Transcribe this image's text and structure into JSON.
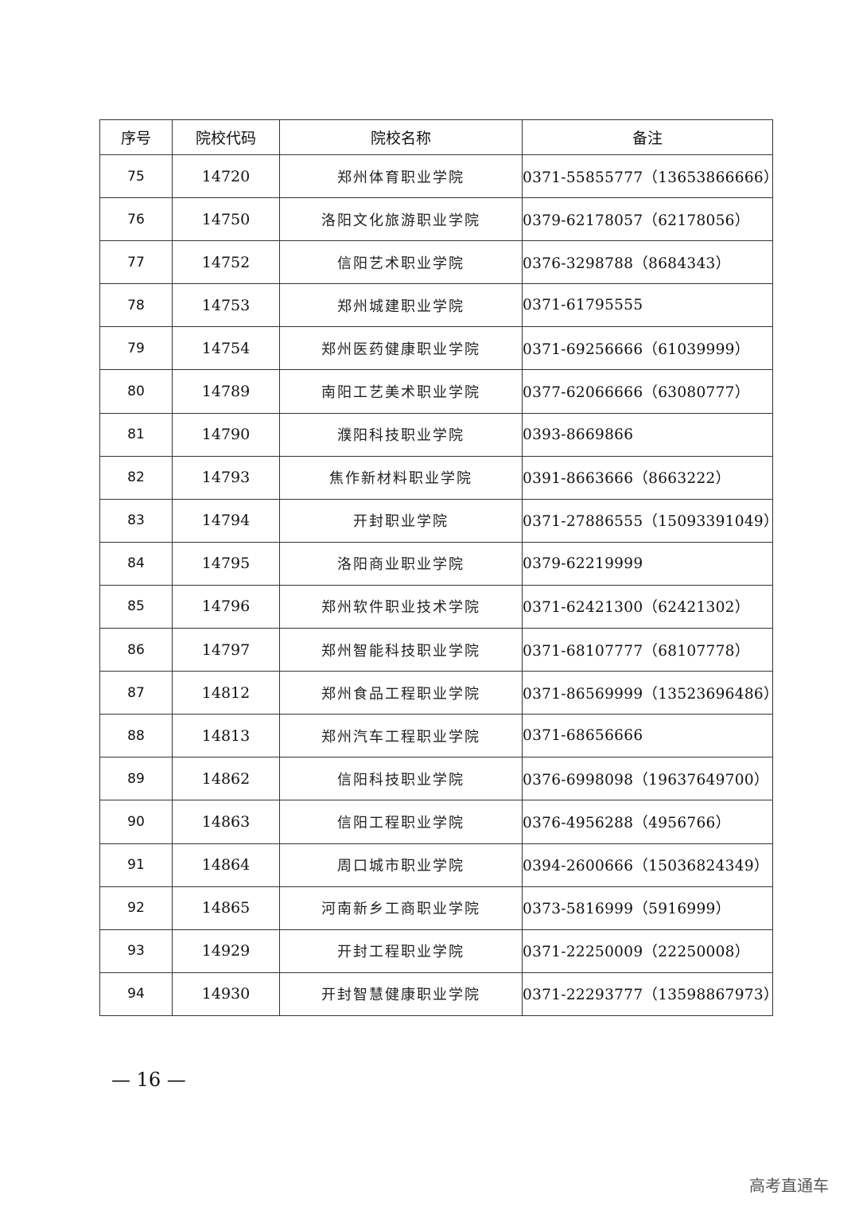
{
  "table": {
    "headers": [
      "序号",
      "院校代码",
      "院校名称",
      "备注"
    ],
    "rows": [
      [
        "75",
        "14720",
        "郑州体育职业学院",
        "0371-55855777（13653866666）"
      ],
      [
        "76",
        "14750",
        "洛阳文化旅游职业学院",
        "0379-62178057（62178056）"
      ],
      [
        "77",
        "14752",
        "信阳艺术职业学院",
        "0376-3298788（8684343）"
      ],
      [
        "78",
        "14753",
        "郑州城建职业学院",
        "0371-61795555"
      ],
      [
        "79",
        "14754",
        "郑州医药健康职业学院",
        "0371-69256666（61039999）"
      ],
      [
        "80",
        "14789",
        "南阳工艺美术职业学院",
        "0377-62066666（63080777）"
      ],
      [
        "81",
        "14790",
        "濮阳科技职业学院",
        "0393-8669866"
      ],
      [
        "82",
        "14793",
        "焦作新材料职业学院",
        "0391-8663666（8663222）"
      ],
      [
        "83",
        "14794",
        "开封职业学院",
        "0371-27886555（15093391049）"
      ],
      [
        "84",
        "14795",
        "洛阳商业职业学院",
        "0379-62219999"
      ],
      [
        "85",
        "14796",
        "郑州软件职业技术学院",
        "0371-62421300（62421302）"
      ],
      [
        "86",
        "14797",
        "郑州智能科技职业学院",
        "0371-68107777（68107778）"
      ],
      [
        "87",
        "14812",
        "郑州食品工程职业学院",
        "0371-86569999（13523696486）"
      ],
      [
        "88",
        "14813",
        "郑州汽车工程职业学院",
        "0371-68656666"
      ],
      [
        "89",
        "14862",
        "信阳科技职业学院",
        "0376-6998098（19637649700）"
      ],
      [
        "90",
        "14863",
        "信阳工程职业学院",
        "0376-4956288（4956766）"
      ],
      [
        "91",
        "14864",
        "周口城市职业学院",
        "0394-2600666（15036824349）"
      ],
      [
        "92",
        "14865",
        "河南新乡工商职业学院",
        "0373-5816999（5916999）"
      ],
      [
        "93",
        "14929",
        "开封工程职业学院",
        "0371-22250009（22250008）"
      ],
      [
        "94",
        "14930",
        "开封智慧健康职业学院",
        " 0371-22293777（13598867973）"
      ]
    ]
  },
  "page_number": "— 16 —",
  "watermark": "高考直通车"
}
